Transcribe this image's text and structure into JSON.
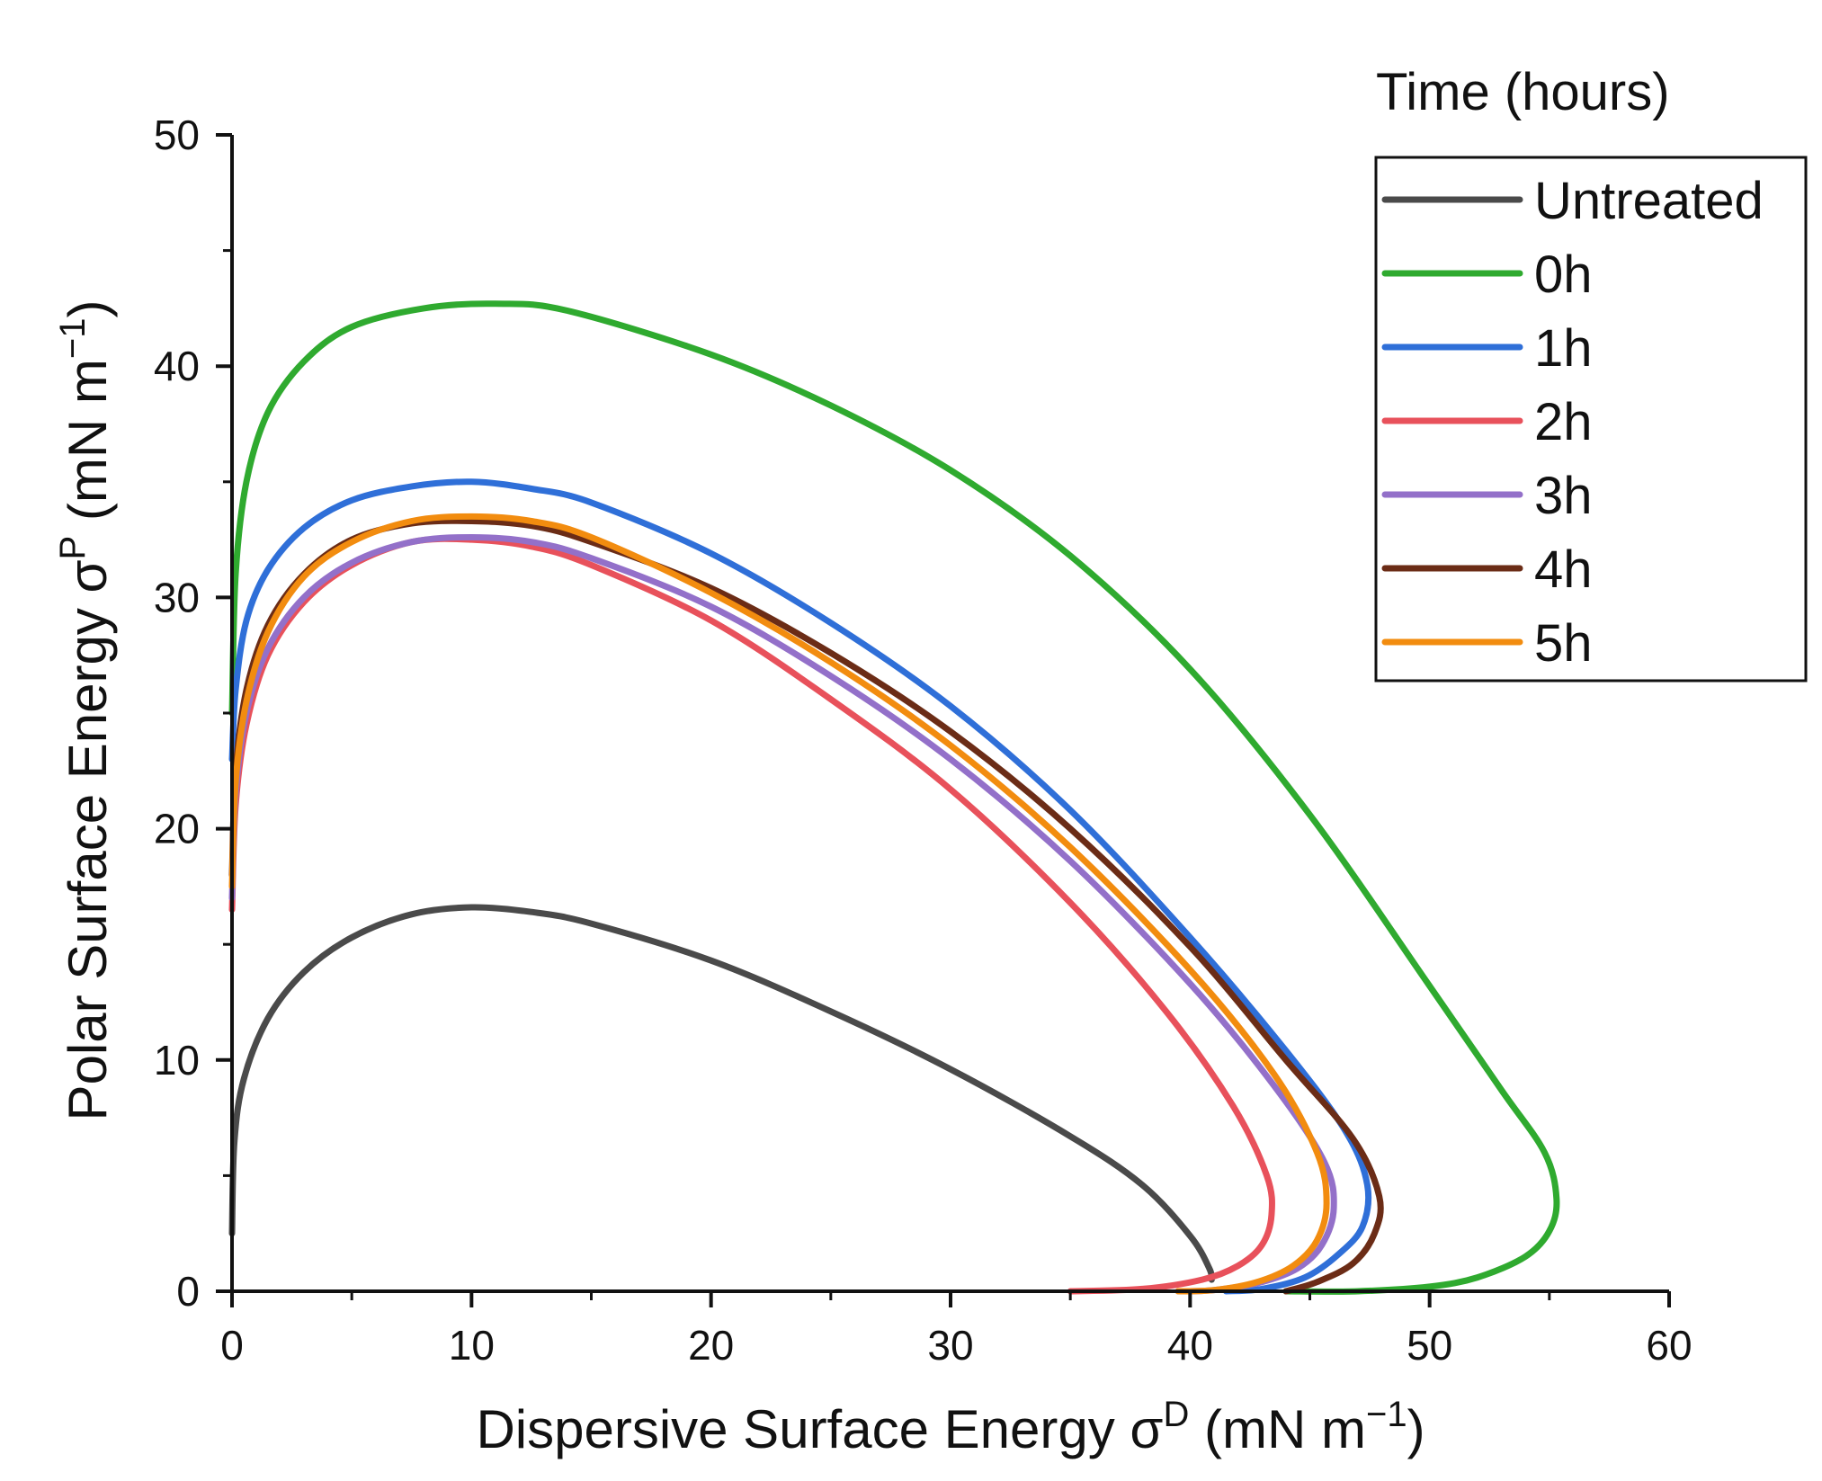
{
  "chart_data": {
    "type": "line",
    "title": "",
    "xlabel": {
      "main": "Dispersive Surface Energy σ",
      "sup": "D",
      "units": " (mN m",
      "units_exp": "−1",
      "close": ")"
    },
    "ylabel": {
      "main": "Polar Surface Energy σ",
      "sup": "P",
      "units": " (mN m",
      "units_exp": "−1",
      "close": ")"
    },
    "xlim": [
      0,
      60
    ],
    "ylim": [
      0,
      50
    ],
    "xticks": [
      0,
      10,
      20,
      30,
      40,
      50,
      60
    ],
    "yticks": [
      0,
      10,
      20,
      30,
      40,
      50
    ],
    "xticks_minor": [
      5,
      15,
      25,
      35,
      45,
      55
    ],
    "yticks_minor": [
      5,
      15,
      25,
      35,
      45
    ],
    "grid": false,
    "legend": {
      "title": "Time (hours)",
      "position": "top-right"
    },
    "series": [
      {
        "name": "Untreated",
        "color": "#4a4a4a",
        "points": [
          [
            0.0,
            2.5
          ],
          [
            0.1,
            6.5
          ],
          [
            0.5,
            9.2
          ],
          [
            1.5,
            11.8
          ],
          [
            3,
            13.8
          ],
          [
            5,
            15.3
          ],
          [
            7.5,
            16.3
          ],
          [
            10,
            16.6
          ],
          [
            12.5,
            16.4
          ],
          [
            15,
            15.9
          ],
          [
            20,
            14.3
          ],
          [
            25,
            12.1
          ],
          [
            30,
            9.6
          ],
          [
            35,
            6.7
          ],
          [
            38,
            4.6
          ],
          [
            40,
            2.4
          ],
          [
            40.8,
            1.0
          ],
          [
            40.9,
            0.5
          ]
        ]
      },
      {
        "name": "0h",
        "color": "#2faa2f",
        "points": [
          [
            0.0,
            25.0
          ],
          [
            0.15,
            31.0
          ],
          [
            0.6,
            35.0
          ],
          [
            1.5,
            38.0
          ],
          [
            3,
            40.2
          ],
          [
            5,
            41.7
          ],
          [
            8,
            42.5
          ],
          [
            11,
            42.7
          ],
          [
            14,
            42.4
          ],
          [
            20,
            40.5
          ],
          [
            25,
            38.3
          ],
          [
            30,
            35.5
          ],
          [
            35,
            31.8
          ],
          [
            40,
            26.9
          ],
          [
            45,
            20.6
          ],
          [
            50,
            13.2
          ],
          [
            53,
            8.7
          ],
          [
            54.8,
            6.0
          ],
          [
            55.3,
            4.0
          ],
          [
            55,
            2.6
          ],
          [
            54,
            1.5
          ],
          [
            52,
            0.6
          ],
          [
            50,
            0.2
          ],
          [
            47,
            0.0
          ],
          [
            44,
            0.0
          ]
        ]
      },
      {
        "name": "1h",
        "color": "#2f6fd8",
        "points": [
          [
            0.0,
            23.0
          ],
          [
            0.15,
            26.0
          ],
          [
            0.6,
            29.0
          ],
          [
            1.5,
            31.2
          ],
          [
            3,
            33.0
          ],
          [
            5,
            34.2
          ],
          [
            7.5,
            34.8
          ],
          [
            10,
            35.0
          ],
          [
            12.5,
            34.7
          ],
          [
            15,
            34.1
          ],
          [
            20,
            31.9
          ],
          [
            25,
            28.9
          ],
          [
            30,
            25.3
          ],
          [
            35,
            20.8
          ],
          [
            40,
            15.3
          ],
          [
            44,
            10.4
          ],
          [
            46.5,
            6.9
          ],
          [
            47.4,
            4.6
          ],
          [
            47.2,
            2.8
          ],
          [
            46.2,
            1.6
          ],
          [
            44.8,
            0.6
          ],
          [
            43,
            0.1
          ],
          [
            41.5,
            0.0
          ]
        ]
      },
      {
        "name": "2h",
        "color": "#e8515b",
        "points": [
          [
            0.0,
            16.5
          ],
          [
            0.15,
            21.0
          ],
          [
            0.6,
            24.5
          ],
          [
            1.5,
            27.5
          ],
          [
            3,
            29.8
          ],
          [
            5,
            31.4
          ],
          [
            7.5,
            32.4
          ],
          [
            10,
            32.5
          ],
          [
            12.5,
            32.2
          ],
          [
            15,
            31.4
          ],
          [
            20,
            29.0
          ],
          [
            25,
            25.6
          ],
          [
            30,
            21.7
          ],
          [
            35,
            16.8
          ],
          [
            39,
            12.1
          ],
          [
            41.8,
            8.0
          ],
          [
            43.2,
            5.0
          ],
          [
            43.4,
            3.3
          ],
          [
            43,
            2.0
          ],
          [
            42,
            1.1
          ],
          [
            40.5,
            0.5
          ],
          [
            38,
            0.1
          ],
          [
            35,
            0.0
          ]
        ]
      },
      {
        "name": "3h",
        "color": "#9370c9",
        "points": [
          [
            0.0,
            17.0
          ],
          [
            0.15,
            21.5
          ],
          [
            0.6,
            25.0
          ],
          [
            1.5,
            27.8
          ],
          [
            3,
            30.0
          ],
          [
            5,
            31.5
          ],
          [
            7.5,
            32.4
          ],
          [
            10,
            32.6
          ],
          [
            12.5,
            32.4
          ],
          [
            15,
            31.7
          ],
          [
            20,
            29.6
          ],
          [
            25,
            26.6
          ],
          [
            30,
            23.0
          ],
          [
            35,
            18.6
          ],
          [
            40,
            13.3
          ],
          [
            43.5,
            8.9
          ],
          [
            45.6,
            5.6
          ],
          [
            46,
            3.6
          ],
          [
            45.5,
            2.0
          ],
          [
            44.5,
            1.0
          ],
          [
            43,
            0.4
          ],
          [
            41,
            0.05
          ],
          [
            39.5,
            0.0
          ]
        ]
      },
      {
        "name": "4h",
        "color": "#6b2c16",
        "points": [
          [
            0.0,
            18.0
          ],
          [
            0.15,
            22.5
          ],
          [
            0.6,
            26.0
          ],
          [
            1.5,
            28.8
          ],
          [
            3,
            31.0
          ],
          [
            5,
            32.5
          ],
          [
            7.5,
            33.2
          ],
          [
            10,
            33.3
          ],
          [
            12.5,
            33.1
          ],
          [
            15,
            32.4
          ],
          [
            20,
            30.4
          ],
          [
            25,
            27.6
          ],
          [
            30,
            24.2
          ],
          [
            35,
            20.0
          ],
          [
            40,
            14.9
          ],
          [
            44,
            10.0
          ],
          [
            46.8,
            6.6
          ],
          [
            47.9,
            4.1
          ],
          [
            47.7,
            2.5
          ],
          [
            46.8,
            1.2
          ],
          [
            45.3,
            0.4
          ],
          [
            44,
            0.0
          ]
        ]
      },
      {
        "name": "5h",
        "color": "#f28c0f",
        "points": [
          [
            0.0,
            17.5
          ],
          [
            0.15,
            22.0
          ],
          [
            0.6,
            25.5
          ],
          [
            1.5,
            28.5
          ],
          [
            3,
            30.9
          ],
          [
            5,
            32.4
          ],
          [
            7.5,
            33.3
          ],
          [
            10,
            33.5
          ],
          [
            12.5,
            33.3
          ],
          [
            15,
            32.6
          ],
          [
            20,
            30.2
          ],
          [
            25,
            27.2
          ],
          [
            30,
            23.6
          ],
          [
            35,
            19.2
          ],
          [
            40,
            13.9
          ],
          [
            43.5,
            9.4
          ],
          [
            45.3,
            6.0
          ],
          [
            45.7,
            3.8
          ],
          [
            45.3,
            2.2
          ],
          [
            44.3,
            1.1
          ],
          [
            42.8,
            0.4
          ],
          [
            41,
            0.05
          ],
          [
            39.5,
            0.0
          ]
        ]
      }
    ]
  }
}
